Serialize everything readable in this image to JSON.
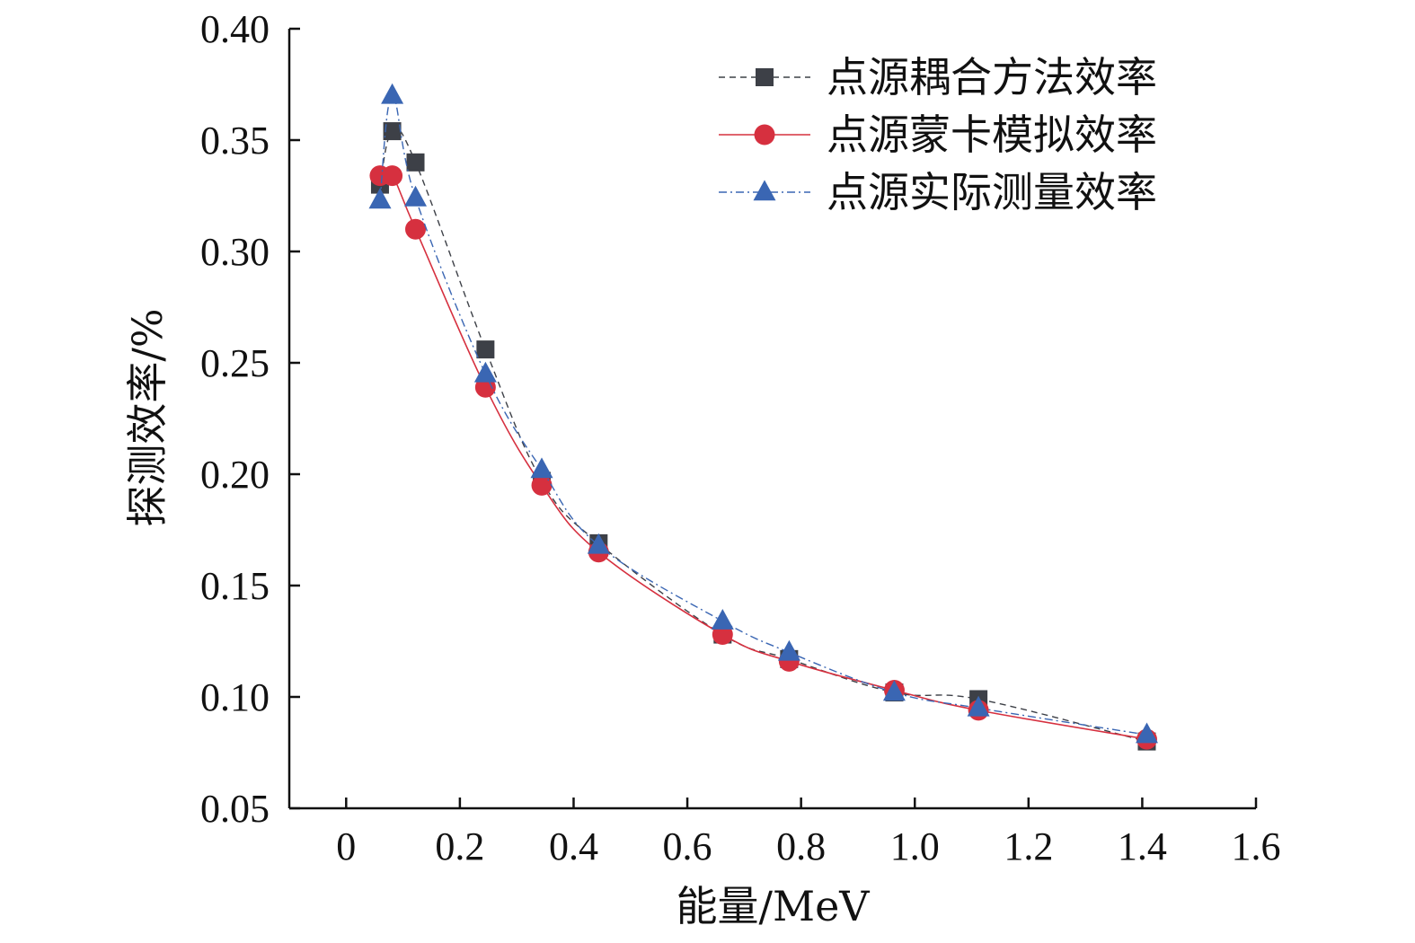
{
  "chart_data": {
    "type": "line",
    "title": "",
    "xlabel": "能量/MeV",
    "ylabel": "探测效率/%",
    "xlim": [
      -0.1,
      1.6
    ],
    "ylim": [
      0.05,
      0.4
    ],
    "xticks": [
      0,
      0.2,
      0.4,
      0.6,
      0.8,
      1.0,
      1.2,
      1.4,
      1.6
    ],
    "xtick_labels": [
      "0",
      "0.2",
      "0.4",
      "0.6",
      "0.8",
      "1.0",
      "1.2",
      "1.4",
      "1.6"
    ],
    "yticks": [
      0.05,
      0.1,
      0.15,
      0.2,
      0.25,
      0.3,
      0.35,
      0.4
    ],
    "ytick_labels": [
      "0.05",
      "0.10",
      "0.15",
      "0.20",
      "0.25",
      "0.30",
      "0.35",
      "0.40"
    ],
    "grid": false,
    "legend_position": "top-right",
    "series": [
      {
        "name": "点源耦合方法效率",
        "marker": "square",
        "line_style": "dashed",
        "color": "#3d4047",
        "x": [
          0.0595,
          0.081,
          0.122,
          0.245,
          0.344,
          0.444,
          0.662,
          0.779,
          0.964,
          1.112,
          1.408
        ],
        "y": [
          0.33,
          0.354,
          0.34,
          0.256,
          0.197,
          0.169,
          0.128,
          0.117,
          0.102,
          0.099,
          0.08
        ]
      },
      {
        "name": "点源蒙卡模拟效率",
        "marker": "circle",
        "line_style": "solid",
        "color": "#d6303f",
        "x": [
          0.0595,
          0.081,
          0.122,
          0.245,
          0.344,
          0.444,
          0.662,
          0.779,
          0.964,
          1.112,
          1.408
        ],
        "y": [
          0.334,
          0.334,
          0.31,
          0.239,
          0.195,
          0.165,
          0.128,
          0.116,
          0.103,
          0.094,
          0.081
        ]
      },
      {
        "name": "点源实际测量效率",
        "marker": "triangle",
        "line_style": "dashdot",
        "color": "#3a66b3",
        "x": [
          0.0595,
          0.081,
          0.122,
          0.245,
          0.344,
          0.444,
          0.662,
          0.779,
          0.964,
          1.112,
          1.408
        ],
        "y": [
          0.323,
          0.37,
          0.324,
          0.245,
          0.202,
          0.168,
          0.134,
          0.12,
          0.102,
          0.095,
          0.083
        ]
      }
    ]
  }
}
